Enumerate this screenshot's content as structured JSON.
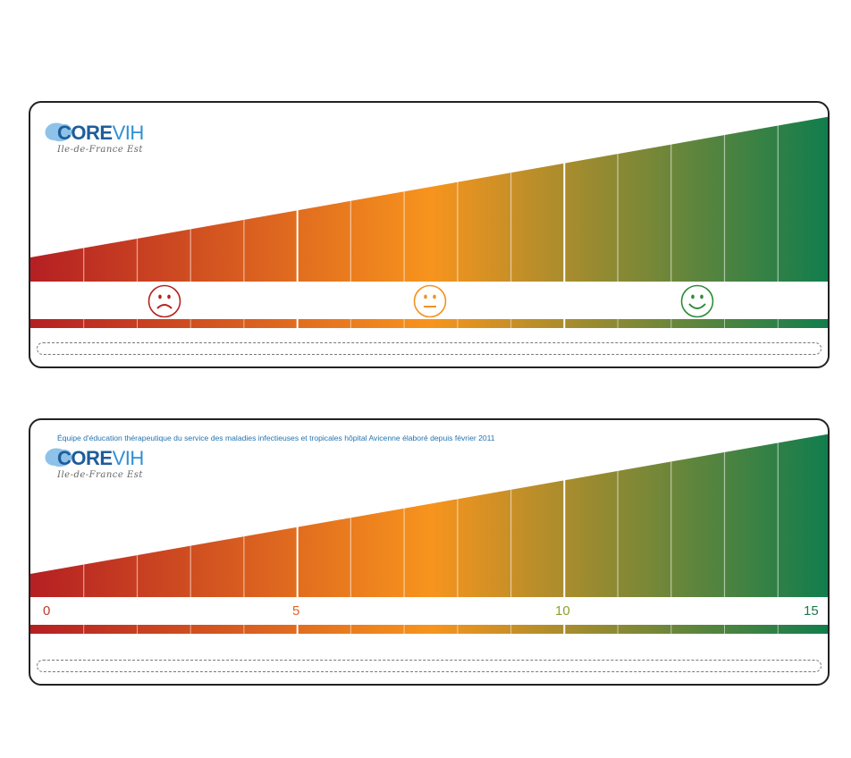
{
  "cards": [
    {
      "logo": {
        "brand_main": "CORE",
        "brand_accent": "VIH",
        "region": "Ile-de-France Est"
      },
      "faces": [
        {
          "mood": "sad-face-icon",
          "color": "#b5251f"
        },
        {
          "mood": "neutral-face-icon",
          "color": "#f39221"
        },
        {
          "mood": "happy-face-icon",
          "color": "#2f8c3a"
        }
      ]
    },
    {
      "caption": "Équipe d'éducation thérapeutique du service des maladies infectieuses et tropicales hôpital Avicenne élaboré depuis février 2011",
      "logo": {
        "brand_main": "CORE",
        "brand_accent": "VIH",
        "region": "Ile-de-France Est"
      },
      "scale_labels": [
        {
          "value": "0",
          "color": "#c0392b"
        },
        {
          "value": "5",
          "color": "#e0632a"
        },
        {
          "value": "10",
          "color": "#8aa22b"
        },
        {
          "value": "15",
          "color": "#1a7a4a"
        }
      ]
    }
  ],
  "gradient_colors": {
    "start": "#b51f23",
    "mid": "#f7941d",
    "end": "#0f7d4d"
  }
}
